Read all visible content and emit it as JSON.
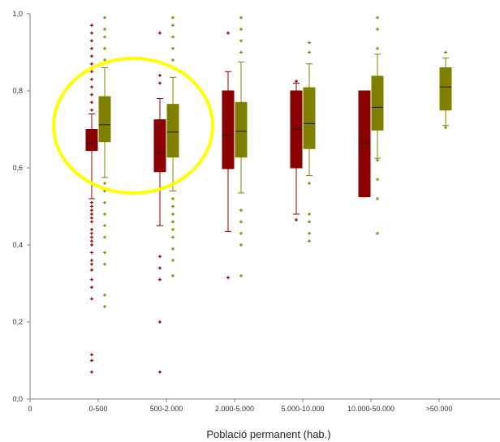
{
  "colors": {
    "series_a": "#8b0000",
    "series_b": "#808000",
    "highlight": "#ffff00",
    "axis": "#808080"
  },
  "chart_data": {
    "type": "box",
    "xlabel": "Població permanent (hab.)",
    "ylabel": "",
    "ylim": [
      0.0,
      1.0
    ],
    "yticks": [
      "0,0",
      "0,2",
      "0,4",
      "0,6",
      "0,8",
      "1,0"
    ],
    "x_origin_label": "0",
    "categories": [
      "0-500",
      "500-2.000",
      "2.000-5.000",
      "5.000-10.000",
      "10.000-50.000",
      ">50.000"
    ],
    "legend": "none",
    "grid": false,
    "series": [
      {
        "boxes": [
          {
            "q1": 0.645,
            "median": 0.665,
            "q3": 0.7,
            "wmin": 0.52,
            "wmax": 0.74,
            "outliers": [
              0.07,
              0.1,
              0.115,
              0.26,
              0.29,
              0.31,
              0.335,
              0.35,
              0.36,
              0.38,
              0.4,
              0.41,
              0.42,
              0.43,
              0.44,
              0.46,
              0.47,
              0.48,
              0.49,
              0.5,
              0.51,
              0.75,
              0.77,
              0.79,
              0.81,
              0.83,
              0.85,
              0.87,
              0.89,
              0.91,
              0.93,
              0.95,
              0.97
            ]
          },
          {
            "q1": 0.59,
            "median": 0.64,
            "q3": 0.725,
            "wmin": 0.45,
            "wmax": 0.78,
            "outliers": [
              0.07,
              0.2,
              0.31,
              0.34,
              0.37,
              0.82,
              0.84,
              0.95
            ]
          },
          {
            "q1": 0.598,
            "median": 0.685,
            "q3": 0.8,
            "wmin": 0.435,
            "wmax": 0.85,
            "outliers": [
              0.315,
              0.95
            ]
          },
          {
            "q1": 0.6,
            "median": 0.7,
            "q3": 0.8,
            "wmin": 0.48,
            "wmax": 0.82,
            "outliers": [
              0.465,
              0.825
            ]
          },
          {
            "q1": 0.525,
            "median": 0.665,
            "q3": 0.8,
            "wmin": 0.525,
            "wmax": 0.8,
            "outliers": []
          },
          null
        ]
      },
      {
        "boxes": [
          {
            "q1": 0.668,
            "median": 0.712,
            "q3": 0.785,
            "wmin": 0.575,
            "wmax": 0.86,
            "outliers": [
              0.24,
              0.27,
              0.35,
              0.38,
              0.42,
              0.45,
              0.48,
              0.51,
              0.54,
              0.56,
              0.88,
              0.91,
              0.94,
              0.96,
              0.99
            ]
          },
          {
            "q1": 0.628,
            "median": 0.693,
            "q3": 0.765,
            "wmin": 0.54,
            "wmax": 0.835,
            "outliers": [
              0.32,
              0.36,
              0.39,
              0.42,
              0.44,
              0.46,
              0.48,
              0.5,
              0.52,
              0.86,
              0.88,
              0.91,
              0.94,
              0.97,
              0.99
            ]
          },
          {
            "q1": 0.628,
            "median": 0.695,
            "q3": 0.77,
            "wmin": 0.535,
            "wmax": 0.875,
            "outliers": [
              0.32,
              0.4,
              0.43,
              0.46,
              0.49,
              0.9,
              0.93,
              0.96,
              0.99
            ]
          },
          {
            "q1": 0.65,
            "median": 0.715,
            "q3": 0.808,
            "wmin": 0.58,
            "wmax": 0.87,
            "outliers": [
              0.41,
              0.43,
              0.46,
              0.48,
              0.56,
              0.9,
              0.925
            ]
          },
          {
            "q1": 0.698,
            "median": 0.757,
            "q3": 0.838,
            "wmin": 0.625,
            "wmax": 0.895,
            "outliers": [
              0.43,
              0.52,
              0.57,
              0.62,
              0.91,
              0.96,
              0.99
            ]
          },
          {
            "q1": 0.75,
            "median": 0.81,
            "q3": 0.86,
            "wmin": 0.71,
            "wmax": 0.885,
            "outliers": [
              0.705,
              0.9
            ]
          }
        ]
      }
    ],
    "highlight_ellipse_around_categories": [
      "0-500",
      "500-2.000"
    ]
  }
}
